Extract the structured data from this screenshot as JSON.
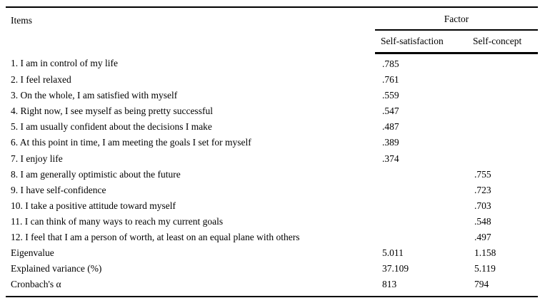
{
  "table": {
    "items_header": "Items",
    "factor_header": "Factor",
    "columns": [
      "Self-satisfaction",
      "Self-concept"
    ],
    "rows": [
      {
        "label": "1. I am in control of my life",
        "self_satisfaction": ".785",
        "self_concept": ""
      },
      {
        "label": "2. I feel relaxed",
        "self_satisfaction": ".761",
        "self_concept": ""
      },
      {
        "label": "3. On the whole, I am satisfied with myself",
        "self_satisfaction": ".559",
        "self_concept": ""
      },
      {
        "label": "4. Right now, I see myself as being pretty successful",
        "self_satisfaction": ".547",
        "self_concept": ""
      },
      {
        "label": "5. I am usually confident about the decisions I make",
        "self_satisfaction": ".487",
        "self_concept": ""
      },
      {
        "label": "6. At this point in time, I am meeting the goals I set for myself",
        "self_satisfaction": ".389",
        "self_concept": ""
      },
      {
        "label": "7. I enjoy life",
        "self_satisfaction": ".374",
        "self_concept": ""
      },
      {
        "label": "8. I am generally optimistic about the future",
        "self_satisfaction": "",
        "self_concept": ".755"
      },
      {
        "label": "9. I have self-confidence",
        "self_satisfaction": "",
        "self_concept": ".723"
      },
      {
        "label": "10. I take a positive attitude toward myself",
        "self_satisfaction": "",
        "self_concept": ".703"
      },
      {
        "label": "11. I can think of many ways to reach my current goals",
        "self_satisfaction": "",
        "self_concept": ".548"
      },
      {
        "label": "12. I feel that I am a person of worth, at least on an equal plane with others",
        "self_satisfaction": "",
        "self_concept": ".497"
      },
      {
        "label": "Eigenvalue",
        "self_satisfaction": "5.011",
        "self_concept": "1.158"
      },
      {
        "label": "Explained variance (%)",
        "self_satisfaction": "37.109",
        "self_concept": "5.119"
      },
      {
        "label": "Cronbach's α",
        "self_satisfaction": "813",
        "self_concept": "794"
      }
    ]
  }
}
